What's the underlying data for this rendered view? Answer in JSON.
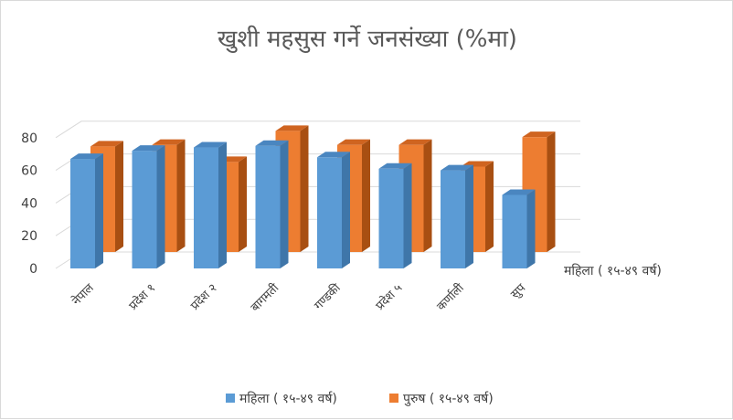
{
  "chart_data": {
    "type": "bar",
    "title": "खुशी महसुस गर्ने जनसंख्या (%मा)",
    "categories": [
      "नेपाल",
      "प्रदेश १",
      "प्रदेश २",
      "बागमती",
      "गण्डकी",
      "प्रदेश ५",
      "कर्णाली",
      "सुप"
    ],
    "series": [
      {
        "name": "महिला ( १५-४९ वर्ष)",
        "values": [
          67,
          72,
          74,
          75,
          68,
          61,
          60,
          45
        ]
      },
      {
        "name": "पुरुष ( १५-४९ वर्ष)",
        "values": [
          68,
          69,
          58,
          78,
          69,
          69,
          55,
          74
        ]
      }
    ],
    "depth_axis_labels": [
      "महिला ( १५-४९ वर्ष)"
    ],
    "yticks": [
      0,
      20,
      40,
      60,
      80
    ],
    "ylim": [
      0,
      80
    ],
    "grid": true,
    "legend_position": "bottom",
    "colors": {
      "series1_front": "#5b9bd5",
      "series1_side": "#3f76a9",
      "series1_top": "#4a86c0",
      "series2_front": "#ed7d31",
      "series2_side": "#a84f12",
      "series2_top": "#cf6420",
      "grid": "#d9d9d9",
      "text": "#404040",
      "title": "#595959"
    }
  }
}
